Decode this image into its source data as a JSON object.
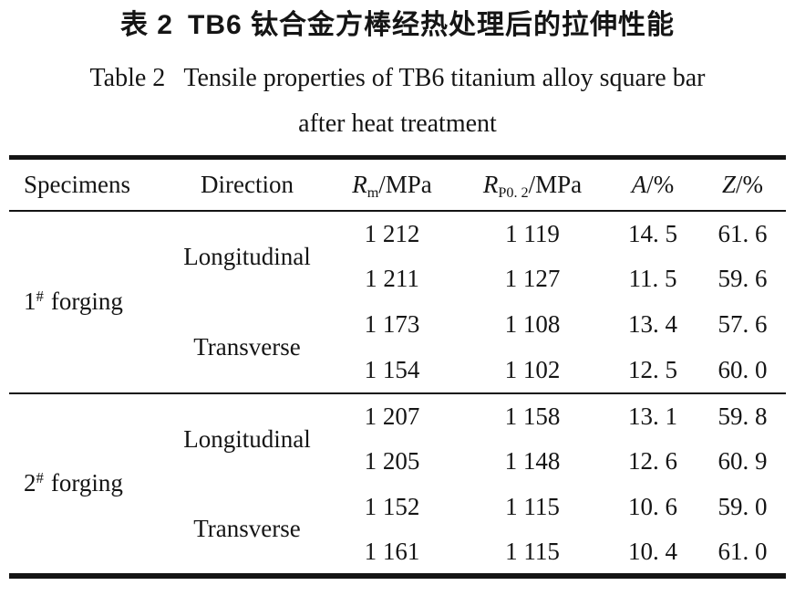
{
  "colors": {
    "text": "#151515",
    "rule": "#141414",
    "background": "#ffffff"
  },
  "caption": {
    "zh_label": "表 2",
    "zh_text": "TB6 钛合金方棒经热处理后的拉伸性能",
    "en_label": "Table 2",
    "en_text": "Tensile properties of TB6 titanium alloy square bar",
    "en_line2": "after heat treatment"
  },
  "table": {
    "headers": {
      "specimens": "Specimens",
      "direction": "Direction",
      "rm": {
        "symbol": "R",
        "sub": "m",
        "unit": "/MPa"
      },
      "rp": {
        "symbol": "R",
        "sub": "P0. 2",
        "unit": "/MPa"
      },
      "a": {
        "symbol": "A",
        "unit": "/%"
      },
      "z": {
        "symbol": "Z",
        "unit": "/%"
      }
    },
    "blocks": [
      {
        "specimen": {
          "num": "1",
          "sup": "#",
          "label": "forging"
        },
        "groups": [
          {
            "direction": "Longitudinal",
            "rows": [
              {
                "rm": "1 212",
                "rp": "1 119",
                "a": "14. 5",
                "z": "61. 6"
              },
              {
                "rm": "1 211",
                "rp": "1 127",
                "a": "11. 5",
                "z": "59. 6"
              }
            ]
          },
          {
            "direction": "Transverse",
            "rows": [
              {
                "rm": "1 173",
                "rp": "1 108",
                "a": "13. 4",
                "z": "57. 6"
              },
              {
                "rm": "1 154",
                "rp": "1 102",
                "a": "12. 5",
                "z": "60. 0"
              }
            ]
          }
        ]
      },
      {
        "specimen": {
          "num": "2",
          "sup": "#",
          "label": "forging"
        },
        "groups": [
          {
            "direction": "Longitudinal",
            "rows": [
              {
                "rm": "1 207",
                "rp": "1 158",
                "a": "13. 1",
                "z": "59. 8"
              },
              {
                "rm": "1 205",
                "rp": "1 148",
                "a": "12. 6",
                "z": "60. 9"
              }
            ]
          },
          {
            "direction": "Transverse",
            "rows": [
              {
                "rm": "1 152",
                "rp": "1 115",
                "a": "10. 6",
                "z": "59. 0"
              },
              {
                "rm": "1 161",
                "rp": "1 115",
                "a": "10. 4",
                "z": "61. 0"
              }
            ]
          }
        ]
      }
    ]
  }
}
